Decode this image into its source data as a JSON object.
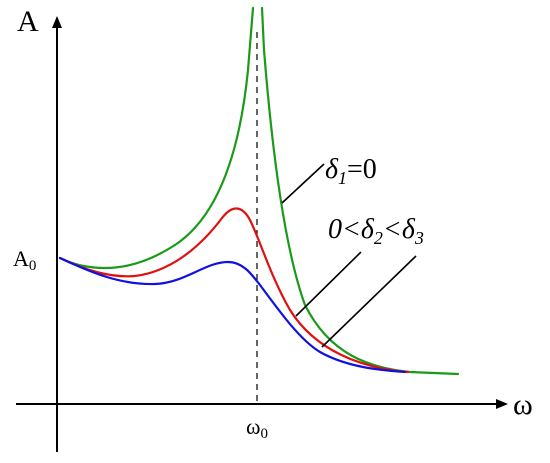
{
  "axes": {
    "y_label": "A",
    "x_label": "ω"
  },
  "annotations": {
    "a0": {
      "base": "A",
      "sub": "0"
    },
    "omega0": {
      "base": "ω",
      "sub": "0"
    },
    "delta1": {
      "d": "δ",
      "sub": "1",
      "rest": "=0"
    },
    "delta23": {
      "zero": "0<",
      "d2": "δ",
      "sub2": "2",
      "lt": "<",
      "d3": "δ",
      "sub3": "3"
    }
  },
  "colors": {
    "delta1_curve": "#1a9a1a",
    "delta2_curve": "#e01010",
    "delta3_curve": "#1010e0"
  }
}
